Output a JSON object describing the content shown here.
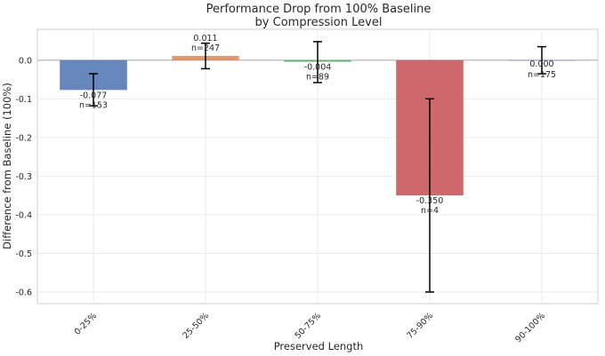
{
  "chart_data": {
    "type": "bar",
    "title": [
      "Performance Drop from 100% Baseline",
      "by Compression Level"
    ],
    "xlabel": "Preserved Length",
    "ylabel": "Difference from Baseline (100%)",
    "categories": [
      "0-25%",
      "25-50%",
      "50-75%",
      "75-90%",
      "90-100%"
    ],
    "values": [
      -0.077,
      0.011,
      -0.004,
      -0.35,
      0.0
    ],
    "value_labels": [
      "-0.077",
      "0.011",
      "-0.004",
      "-0.350",
      "0.000"
    ],
    "n_labels": [
      "n=153",
      "n=247",
      "n=89",
      "n=4",
      "n=175"
    ],
    "error_low": [
      -0.118,
      -0.022,
      -0.058,
      -0.6,
      -0.035
    ],
    "error_high": [
      -0.035,
      0.044,
      0.048,
      -0.1,
      0.035
    ],
    "colors": [
      "#4c72b0",
      "#dd8452",
      "#55a868",
      "#c44e52",
      "#8172b3"
    ],
    "ylim": [
      -0.63,
      0.08
    ],
    "yticks": [
      0.0,
      -0.1,
      -0.2,
      -0.3,
      -0.4,
      -0.5,
      -0.6
    ],
    "ytick_labels": [
      "0.0",
      "-0.1",
      "-0.2",
      "-0.3",
      "-0.4",
      "-0.5",
      "-0.6"
    ],
    "grid": true,
    "baseline": 0.0
  }
}
